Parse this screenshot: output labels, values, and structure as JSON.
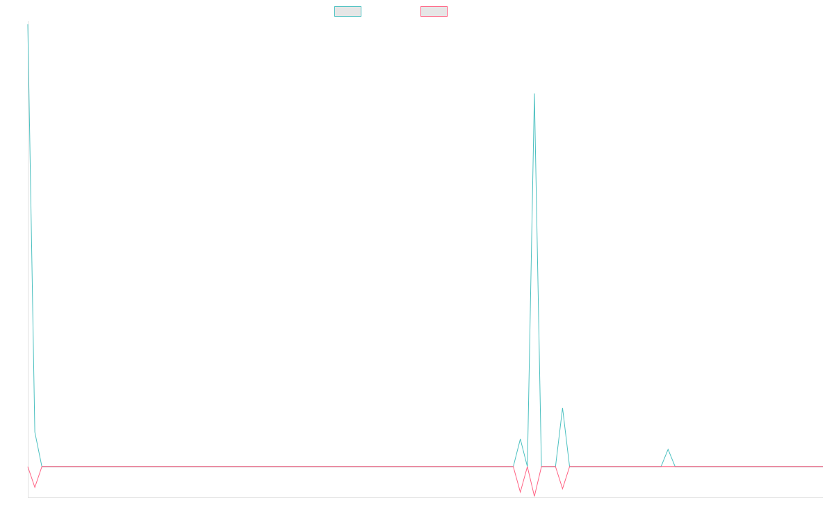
{
  "chart_data": {
    "type": "line",
    "x_count": 114,
    "ylim": [
      -45,
      640
    ],
    "grid": false,
    "legend_position": "top-center",
    "series": [
      {
        "color": "#4bc0c0",
        "points": [
          [
            0,
            640
          ],
          [
            1,
            50
          ],
          [
            2,
            0
          ],
          [
            69,
            0
          ],
          [
            70,
            40
          ],
          [
            71,
            0
          ],
          [
            72,
            540
          ],
          [
            73,
            0
          ],
          [
            75,
            0
          ],
          [
            76,
            85
          ],
          [
            77,
            0
          ],
          [
            90,
            0
          ],
          [
            91,
            25
          ],
          [
            92,
            0
          ],
          [
            113,
            0
          ]
        ]
      },
      {
        "color": "#ff6384",
        "points": [
          [
            0,
            0
          ],
          [
            1,
            -30
          ],
          [
            2,
            0
          ],
          [
            69,
            0
          ],
          [
            70,
            -37
          ],
          [
            71,
            0
          ],
          [
            72,
            -43
          ],
          [
            73,
            0
          ],
          [
            75,
            0
          ],
          [
            76,
            -32
          ],
          [
            77,
            0
          ],
          [
            113,
            0
          ]
        ]
      }
    ],
    "legend": [
      {
        "label": "",
        "color": "#4bc0c0"
      },
      {
        "label": "",
        "color": "#ff6384"
      }
    ]
  }
}
